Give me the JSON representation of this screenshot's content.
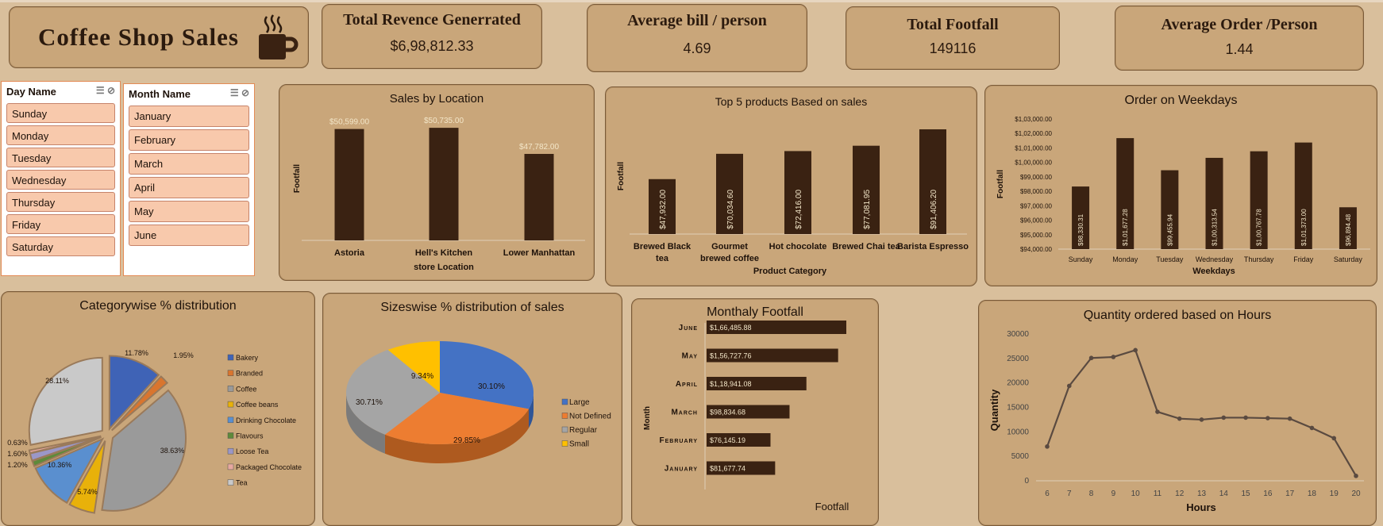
{
  "header": {
    "title": "Coffee Shop Sales"
  },
  "kpis": [
    {
      "title": "Total Revence Generrated",
      "value": "$6,98,812.33"
    },
    {
      "title": "Average bill / person",
      "value": "4.69"
    },
    {
      "title": "Total Footfall",
      "value": "149116"
    },
    {
      "title": "Average Order /Person",
      "value": "1.44"
    }
  ],
  "slicers": {
    "day": {
      "title": "Day Name",
      "items": [
        "Sunday",
        "Monday",
        "Tuesday",
        "Wednesday",
        "Thursday",
        "Friday",
        "Saturday"
      ]
    },
    "month": {
      "title": "Month Name",
      "items": [
        "January",
        "February",
        "March",
        "April",
        "May",
        "June"
      ]
    }
  },
  "chart_data": [
    {
      "type": "bar",
      "title": "Sales by Location",
      "categories": [
        "Astoria",
        "Hell's Kitchen",
        "Lower Manhattan"
      ],
      "values": [
        50599,
        50735,
        47782
      ],
      "labels": [
        "$50,599.00",
        "$50,735.00",
        "$47,782.00"
      ],
      "xlabel": "store Location",
      "ylabel": "Footfall",
      "legend": "none"
    },
    {
      "type": "bar",
      "title": "Top 5 products Based on sales",
      "categories": [
        "Brewed Black tea",
        "Gourmet brewed coffee",
        "Hot chocolate",
        "Brewed Chai tea",
        "Barista Espresso"
      ],
      "values": [
        47932,
        70034.6,
        72416,
        77081.95,
        91406.2
      ],
      "labels": [
        "$47,932.00",
        "$70,034.60",
        "$72,416.00",
        "$77,081.95",
        "$91,406.20"
      ],
      "xlabel": "Product Category",
      "ylabel": "Footfall"
    },
    {
      "type": "bar",
      "title": "Order on Weekdays",
      "categories": [
        "Sunday",
        "Monday",
        "Tuesday",
        "Wednesday",
        "Thursday",
        "Friday",
        "Saturday"
      ],
      "values": [
        98330.31,
        101677.28,
        99455.94,
        100313.54,
        100767.78,
        101373.0,
        96894.48
      ],
      "labels": [
        "$98,330.31",
        "$1,01,677.28",
        "$99,455.94",
        "$1,00,313.54",
        "$1,00,767.78",
        "$1,01,373.00",
        "$96,894.48"
      ],
      "ticks": [
        "$1,03,000.00",
        "$1,02,000.00",
        "$1,01,000.00",
        "$1,00,000.00",
        "$99,000.00",
        "$98,000.00",
        "$97,000.00",
        "$96,000.00",
        "$95,000.00",
        "$94,000.00"
      ],
      "xlabel": "Weekdays",
      "ylabel": "Footfall",
      "ylim": [
        94000,
        103000
      ]
    },
    {
      "type": "pie",
      "title": "Categorywise % distribution",
      "categories": [
        "Bakery",
        "Branded",
        "Coffee",
        "Coffee beans",
        "Drinking Chocolate",
        "Flavours",
        "Loose Tea",
        "Packaged Chocolate",
        "Tea"
      ],
      "values": [
        11.78,
        1.95,
        38.63,
        5.74,
        10.36,
        1.2,
        1.6,
        0.63,
        28.11
      ],
      "labels": [
        "11.78%",
        "1.95%",
        "38.63%",
        "5.74%",
        "10.36%",
        "1.20%",
        "1.60%",
        "0.63%",
        "28.11%"
      ],
      "colors": [
        "#3f63b6",
        "#d9752e",
        "#9a9a9a",
        "#e8b10a",
        "#5a8fcf",
        "#5e8a3a",
        "#9b97c7",
        "#e7a8a0",
        "#c9c9c9"
      ],
      "legend": "right"
    },
    {
      "type": "pie",
      "title": "Sizeswise  % distribution  of sales",
      "categories": [
        "Large",
        "Not Defined",
        "Regular",
        "Small"
      ],
      "values": [
        30.1,
        29.85,
        30.71,
        9.34
      ],
      "labels": [
        "30.10%",
        "29.85%",
        "30.71%",
        "9.34%"
      ],
      "colors": [
        "#4472c4",
        "#ed7d31",
        "#a5a5a5",
        "#ffc000"
      ],
      "legend": "right"
    },
    {
      "type": "bar",
      "orientation": "horizontal",
      "title": "Monthaly Footfall",
      "categories": [
        "June",
        "May",
        "April",
        "March",
        "February",
        "January"
      ],
      "values": [
        166485.88,
        156727.76,
        118941.08,
        98834.68,
        76145.19,
        81677.74
      ],
      "labels": [
        "$1,66,485.88",
        "$1,56,727.76",
        "$1,18,941.08",
        "$98,834.68",
        "$76,145.19",
        "$81,677.74"
      ],
      "xlabel": "Footfall",
      "ylabel": "Month"
    },
    {
      "type": "line",
      "title": "Quantity ordered based on Hours",
      "x": [
        6,
        7,
        8,
        9,
        10,
        11,
        12,
        13,
        14,
        15,
        16,
        17,
        18,
        19,
        20
      ],
      "y": [
        7000,
        19400,
        25100,
        25300,
        26700,
        14100,
        12700,
        12500,
        12900,
        12900,
        12800,
        12700,
        10800,
        8700,
        1000
      ],
      "xlabel": "Hours",
      "ylabel": "Quantity",
      "ylim": [
        0,
        30000
      ],
      "yticks": [
        0,
        5000,
        10000,
        15000,
        20000,
        25000,
        30000
      ],
      "grid": false
    }
  ]
}
